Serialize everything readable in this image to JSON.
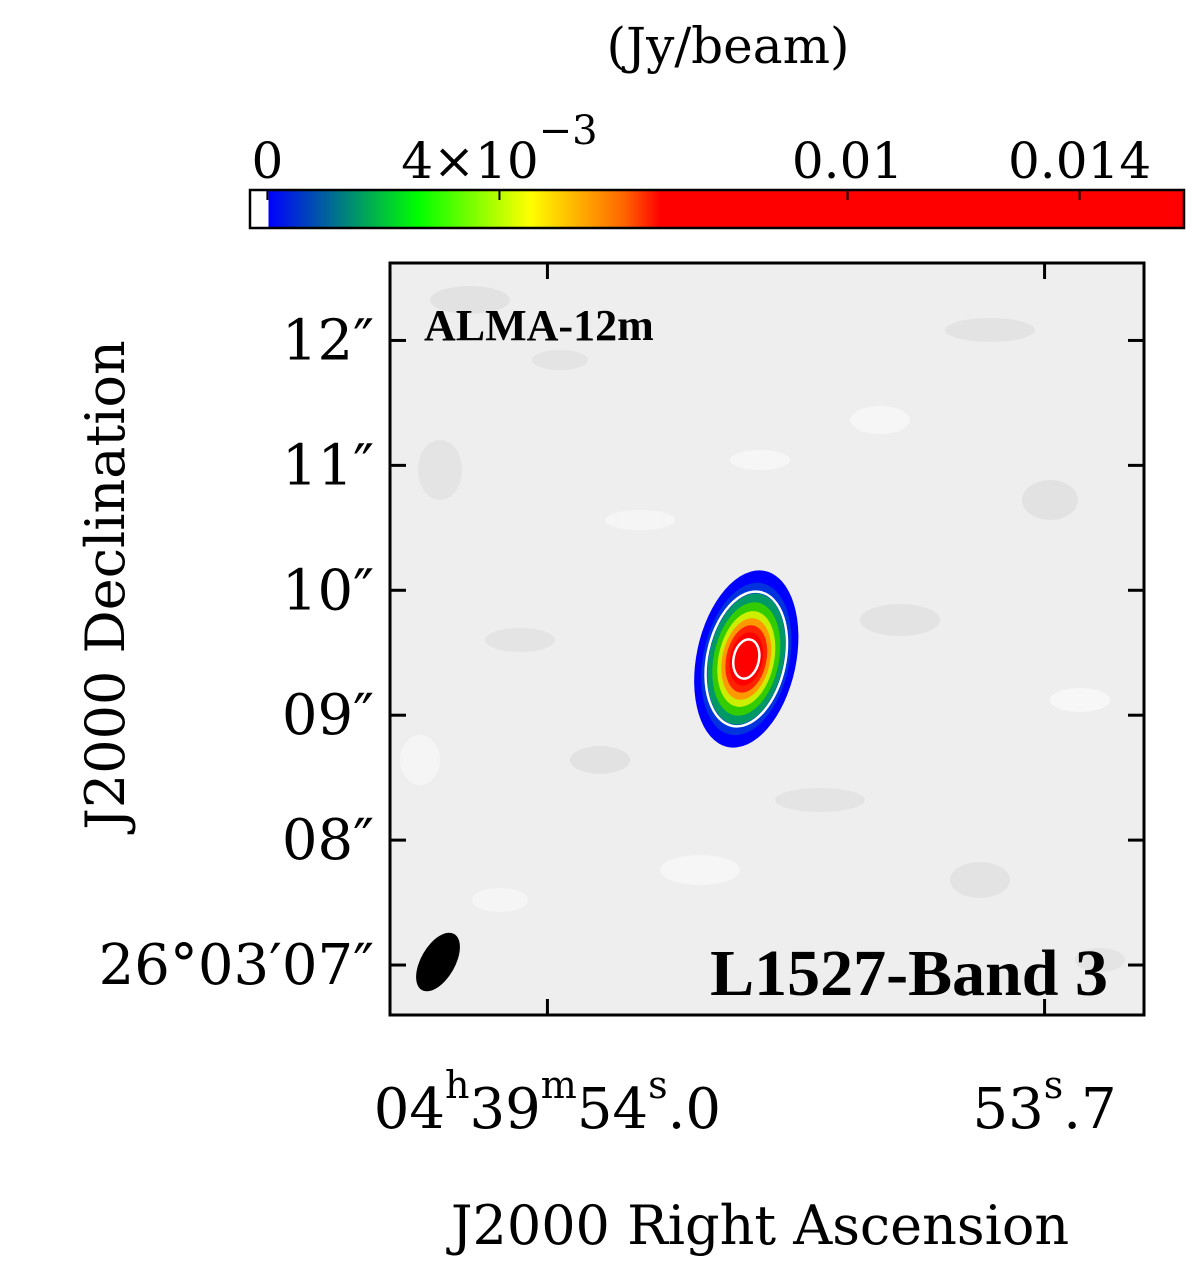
{
  "chart_data": {
    "type": "heatmap",
    "colorbar": {
      "unit_label": "(Jy/beam)",
      "ticks": [
        {
          "value": 0,
          "label": "0",
          "exp": ""
        },
        {
          "value": 0.004,
          "label": "4×10",
          "exp": "−3"
        },
        {
          "value": 0.01,
          "label": "0.01",
          "exp": ""
        },
        {
          "value": 0.014,
          "label": "0.014",
          "exp": ""
        }
      ],
      "range": [
        -0.0003,
        0.0158
      ],
      "colormap": [
        "#ffffff",
        "#0000ff",
        "#00ff00",
        "#ffff00",
        "#ff6600",
        "#ff0000",
        "#ff0000"
      ]
    },
    "xaxis": {
      "title": "J2000 Right Ascension",
      "ticks": [
        {
          "s": 54.0,
          "label": {
            "h": "04",
            "m": "39",
            "s": "54",
            "frac": ".0"
          }
        },
        {
          "s": 53.7,
          "label": {
            "s": "53",
            "frac": ".7"
          }
        }
      ],
      "range_s": [
        54.095,
        53.64
      ]
    },
    "yaxis": {
      "title": "J2000 Declination",
      "ticks": [
        {
          "arcsec": 7,
          "label": "26°03′07″"
        },
        {
          "arcsec": 8,
          "label": "08″"
        },
        {
          "arcsec": 9,
          "label": "09″"
        },
        {
          "arcsec": 10,
          "label": "10″"
        },
        {
          "arcsec": 11,
          "label": "11″"
        },
        {
          "arcsec": 12,
          "label": "12″"
        }
      ],
      "range_arcsec": [
        6.6,
        12.62
      ]
    },
    "source": {
      "ra_s": 53.88,
      "dec_arcsec": 9.45,
      "peak_jy_beam": 0.0155,
      "major_arcsec": 0.72,
      "minor_arcsec": 0.39,
      "pa_deg": 12
    },
    "contour_levels": [
      0.0028,
      0.0105
    ],
    "beam": {
      "major_arcsec": 0.36,
      "minor_arcsec": 0.22,
      "pa_deg": 30
    },
    "annotations": {
      "telescope": "ALMA-12m",
      "target": "L1527-Band 3"
    }
  }
}
